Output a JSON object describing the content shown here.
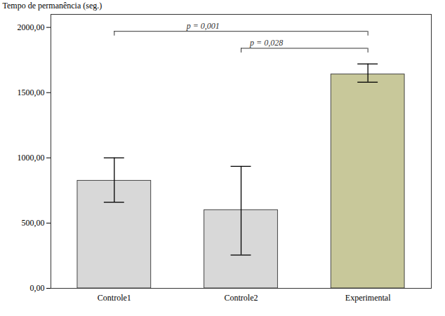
{
  "chart_data": {
    "type": "bar",
    "categories": [
      "Controle1",
      "Controle2",
      "Experimental"
    ],
    "values": [
      825,
      600,
      1640
    ],
    "error_upper": [
      175,
      335,
      80
    ],
    "error_lower": [
      165,
      345,
      60
    ],
    "colors": [
      "#d8d8d8",
      "#d8d8d8",
      "#c8c89a"
    ],
    "ylabel": "Tempo de permanência (seg.)",
    "ylim": [
      0,
      2100
    ],
    "yticks": [
      {
        "value": 0,
        "label": "0,00"
      },
      {
        "value": 500,
        "label": "500,00"
      },
      {
        "value": 1000,
        "label": "1000,00"
      },
      {
        "value": 1500,
        "label": "1500,00"
      },
      {
        "value": 2000,
        "label": "2000,00"
      }
    ],
    "annotations": [
      {
        "x1": "Controle1",
        "x2": "Experimental",
        "y": 1970,
        "label": "p = 0,001"
      },
      {
        "x1": "Controle2",
        "x2": "Experimental",
        "y": 1840,
        "label": "p = 0,028"
      }
    ],
    "grid": false
  }
}
